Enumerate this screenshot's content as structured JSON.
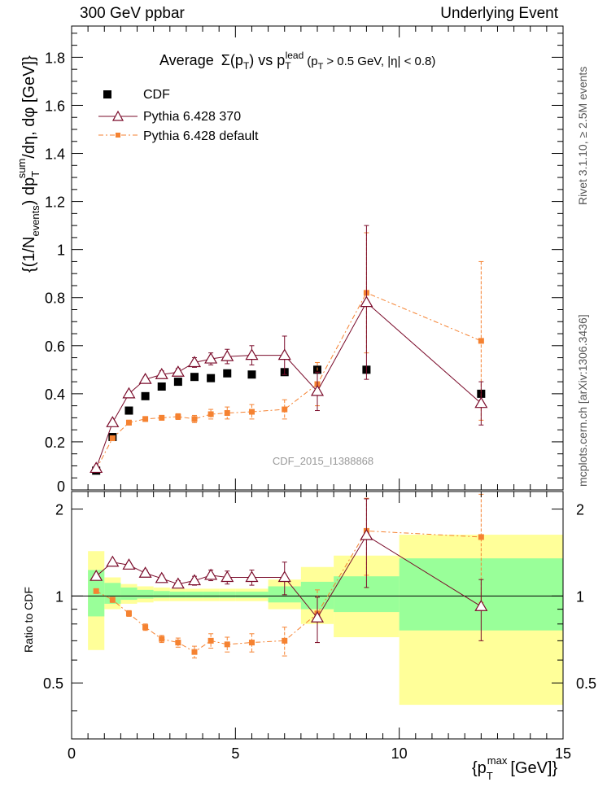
{
  "header": {
    "left": "300 GeV ppbar",
    "right": "Underlying Event"
  },
  "side_labels": {
    "rivet": "Rivet 3.1.10, ≥ 2.5M events",
    "source": "mcplots.cern.ch [arXiv:1306.3436]"
  },
  "colors": {
    "cdf": "#000000",
    "pythia370": "#7a0b2a",
    "pythiadefault": "#f58231",
    "band_inner": "#99ff99",
    "band_outer": "#ffff99"
  },
  "chart_data": [
    {
      "type": "scatter",
      "title_parts": {
        "a": "Average",
        "b": "Σ(p",
        "b_sub": "T",
        "c": ") vs p",
        "c_sup": "lead",
        "c_sub": "T",
        "d": "(p",
        "d_sub": "T",
        "e": "> 0.5 GeV, |η| < 0.8)"
      },
      "ylabel": "{(1/N_events) dp_T^sum/dη, dφ [GeV]}",
      "ylabel_parts": {
        "a": "{(1/N",
        "a_sub": "events",
        "b": ") dp",
        "b_sup": "sum",
        "b_sub": "T",
        "c": "/dη, dφ [GeV]}"
      },
      "watermark": "CDF_2015_I1388868",
      "xlim": [
        0,
        15
      ],
      "ylim": [
        0,
        1.93
      ],
      "yticks": [
        "0",
        "0.2",
        "0.4",
        "0.6",
        "0.8",
        "1",
        "1.2",
        "1.4",
        "1.6",
        "1.8"
      ],
      "legend": [
        "CDF",
        "Pythia 6.428 370",
        "Pythia 6.428 default"
      ],
      "series": [
        {
          "name": "CDF",
          "x": [
            0.75,
            1.25,
            1.75,
            2.25,
            2.75,
            3.25,
            3.75,
            4.25,
            4.75,
            5.5,
            6.5,
            7.5,
            9.0,
            12.5
          ],
          "y": [
            0.08,
            0.22,
            0.33,
            0.39,
            0.43,
            0.45,
            0.47,
            0.465,
            0.485,
            0.48,
            0.49,
            0.5,
            0.5,
            0.4
          ]
        },
        {
          "name": "Pythia 6.428 370",
          "x": [
            0.75,
            1.25,
            1.75,
            2.25,
            2.75,
            3.25,
            3.75,
            4.25,
            4.75,
            5.5,
            6.5,
            7.5,
            9.0,
            12.5
          ],
          "y": [
            0.09,
            0.28,
            0.4,
            0.46,
            0.48,
            0.49,
            0.53,
            0.545,
            0.555,
            0.56,
            0.56,
            0.41,
            0.78,
            0.36
          ],
          "err": [
            0.005,
            0.01,
            0.01,
            0.01,
            0.015,
            0.015,
            0.02,
            0.025,
            0.03,
            0.04,
            0.08,
            0.08,
            0.32,
            0.09
          ]
        },
        {
          "name": "Pythia 6.428 default",
          "x": [
            0.75,
            1.25,
            1.75,
            2.25,
            2.75,
            3.25,
            3.75,
            4.25,
            4.75,
            5.5,
            6.5,
            7.5,
            9.0,
            12.5
          ],
          "y": [
            0.085,
            0.215,
            0.28,
            0.295,
            0.3,
            0.305,
            0.295,
            0.315,
            0.32,
            0.325,
            0.335,
            0.44,
            0.82,
            0.62
          ],
          "err": [
            0.004,
            0.008,
            0.01,
            0.01,
            0.01,
            0.012,
            0.015,
            0.02,
            0.025,
            0.03,
            0.04,
            0.09,
            0.25,
            0.33
          ]
        }
      ]
    },
    {
      "type": "scatter",
      "ylabel": "Ratio to CDF",
      "xlabel": "{p_T^max [GeV]}",
      "xlabel_parts": {
        "a": "{p",
        "a_sup": "max",
        "a_sub": "T",
        "b": "[GeV]}"
      },
      "xlim": [
        0,
        15
      ],
      "ylim": [
        0.32,
        2.3
      ],
      "xticks": [
        "0",
        "5",
        "10",
        "15"
      ],
      "yticks": [
        "0.5",
        "1",
        "2"
      ],
      "bands": {
        "edges": [
          0.5,
          1.0,
          1.5,
          2.0,
          2.5,
          3.0,
          3.5,
          4.0,
          4.5,
          5.0,
          6.0,
          7.0,
          8.0,
          10.0,
          15.0
        ],
        "inner": [
          [
            0.85,
            1.23
          ],
          [
            0.94,
            1.11
          ],
          [
            0.97,
            1.07
          ],
          [
            0.98,
            1.05
          ],
          [
            0.985,
            1.04
          ],
          [
            0.985,
            1.035
          ],
          [
            0.985,
            1.035
          ],
          [
            0.985,
            1.035
          ],
          [
            0.985,
            1.035
          ],
          [
            0.985,
            1.035
          ],
          [
            0.95,
            1.08
          ],
          [
            0.9,
            1.12
          ],
          [
            0.88,
            1.17
          ],
          [
            0.76,
            1.35
          ]
        ],
        "outer": [
          [
            0.65,
            1.43
          ],
          [
            0.9,
            1.16
          ],
          [
            0.94,
            1.1
          ],
          [
            0.95,
            1.08
          ],
          [
            0.96,
            1.07
          ],
          [
            0.96,
            1.06
          ],
          [
            0.96,
            1.06
          ],
          [
            0.96,
            1.06
          ],
          [
            0.96,
            1.06
          ],
          [
            0.96,
            1.06
          ],
          [
            0.9,
            1.14
          ],
          [
            0.8,
            1.26
          ],
          [
            0.72,
            1.38
          ],
          [
            0.42,
            1.63
          ]
        ]
      },
      "series": [
        {
          "name": "Pythia 6.428 370",
          "x": [
            0.75,
            1.25,
            1.75,
            2.25,
            2.75,
            3.25,
            3.75,
            4.25,
            4.75,
            5.5,
            6.5,
            7.5,
            9.0,
            12.5
          ],
          "y": [
            1.17,
            1.31,
            1.28,
            1.2,
            1.15,
            1.1,
            1.13,
            1.18,
            1.16,
            1.16,
            1.16,
            0.84,
            1.62,
            0.92
          ],
          "err": [
            0.01,
            0.02,
            0.02,
            0.03,
            0.03,
            0.03,
            0.04,
            0.05,
            0.06,
            0.07,
            0.15,
            0.15,
            0.55,
            0.22
          ]
        },
        {
          "name": "Pythia 6.428 default",
          "x": [
            0.75,
            1.25,
            1.75,
            2.25,
            2.75,
            3.25,
            3.75,
            4.25,
            4.75,
            5.5,
            6.5,
            7.5,
            9.0,
            12.5
          ],
          "y": [
            1.04,
            0.97,
            0.87,
            0.78,
            0.71,
            0.69,
            0.64,
            0.7,
            0.68,
            0.69,
            0.7,
            0.87,
            1.68,
            1.6
          ],
          "err": [
            0.01,
            0.02,
            0.02,
            0.02,
            0.02,
            0.025,
            0.03,
            0.04,
            0.04,
            0.05,
            0.08,
            0.18,
            0.5,
            0.65
          ]
        }
      ]
    }
  ]
}
